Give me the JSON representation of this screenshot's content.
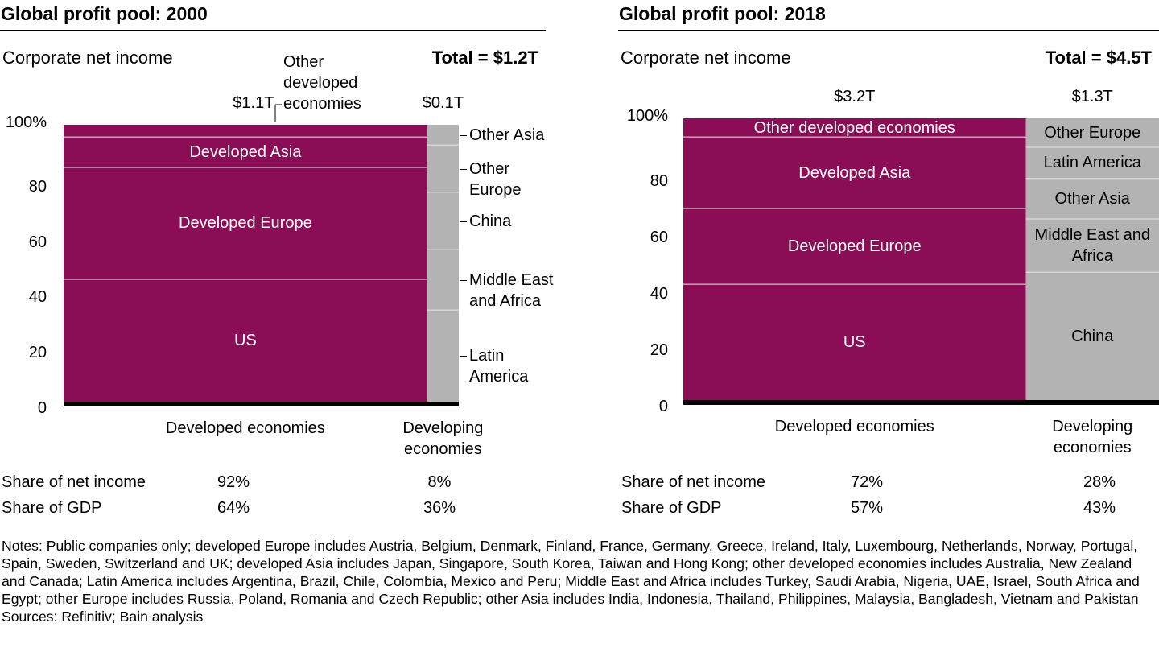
{
  "chart_data": [
    {
      "type": "bar",
      "subtype": "marimekko",
      "title": "Global profit pool: 2000",
      "ylabel": "Corporate net income",
      "total": "Total = $1.2T",
      "ylim": [
        0,
        100
      ],
      "yticks": [
        "100%",
        "80",
        "60",
        "40",
        "20",
        "0"
      ],
      "columns": [
        {
          "name": "Developed economies",
          "value_label": "$1.1T",
          "width_share": 92,
          "color": "#8B0D55",
          "segments": [
            {
              "name": "US",
              "value": 44.2
            },
            {
              "name": "Developed Europe",
              "value": 40.4
            },
            {
              "name": "Developed Asia",
              "value": 11.0
            },
            {
              "name": "Other developed economies",
              "value": 4.4
            }
          ]
        },
        {
          "name": "Developing economies",
          "value_label": "$0.1T",
          "width_share": 8,
          "color": "#B3B3B3",
          "segments": [
            {
              "name": "Latin America",
              "value": 33.1
            },
            {
              "name": "Middle East and Africa",
              "value": 21.8
            },
            {
              "name": "China",
              "value": 20.7
            },
            {
              "name": "Other Europe",
              "value": 17.1
            },
            {
              "name": "Other Asia",
              "value": 7.3
            }
          ]
        }
      ],
      "share_rows": [
        {
          "label": "Share of net income",
          "values": [
            "92%",
            "8%"
          ]
        },
        {
          "label": "Share of GDP",
          "values": [
            "64%",
            "36%"
          ]
        }
      ]
    },
    {
      "type": "bar",
      "subtype": "marimekko",
      "title": "Global profit pool: 2018",
      "ylabel": "Corporate net income",
      "total": "Total = $4.5T",
      "ylim": [
        0,
        100
      ],
      "yticks": [
        "100%",
        "80",
        "60",
        "40",
        "20",
        "0"
      ],
      "columns": [
        {
          "name": "Developed economies",
          "value_label": "$3.2T",
          "width_share": 72,
          "color": "#8B0D55",
          "segments": [
            {
              "name": "US",
              "value": 41.1
            },
            {
              "name": "Developed Europe",
              "value": 26.9
            },
            {
              "name": "Developed Asia",
              "value": 25.4
            },
            {
              "name": "Other developed economies",
              "value": 6.6
            }
          ]
        },
        {
          "name": "Developing economies",
          "value_label": "$1.3T",
          "width_share": 28,
          "color": "#B3B3B3",
          "segments": [
            {
              "name": "China",
              "value": 45.4
            },
            {
              "name": "Middle East and Africa",
              "value": 18.9
            },
            {
              "name": "Other Asia",
              "value": 14.3
            },
            {
              "name": "Latin America",
              "value": 11.1
            },
            {
              "name": "Other Europe",
              "value": 10.3
            }
          ]
        }
      ],
      "share_rows": [
        {
          "label": "Share of net income",
          "values": [
            "72%",
            "28%"
          ]
        },
        {
          "label": "Share of GDP",
          "values": [
            "57%",
            "43%"
          ]
        }
      ]
    }
  ],
  "notes": "Notes: Public companies only; developed Europe includes Austria, Belgium, Denmark, Finland, France, Germany, Greece, Ireland, Italy, Luxembourg, Netherlands, Norway, Portugal, Spain, Sweden, Switzerland and UK; developed Asia includes Japan, Singapore, South Korea, Taiwan and Hong Kong; other developed economies includes Australia, New Zealand and Canada; Latin America includes Argentina, Brazil, Chile, Colombia, Mexico and Peru; Middle East and Africa includes Turkey, Saudi Arabia, Nigeria, UAE, Israel, South Africa and Egypt; other Europe includes Russia, Poland, Romania and Czech Republic; other Asia includes India, Indonesia, Thailand, Philippines, Malaysia, Bangladesh, Vietnam and Pakistan",
  "sources": "Sources: Refinitiv; Bain analysis"
}
